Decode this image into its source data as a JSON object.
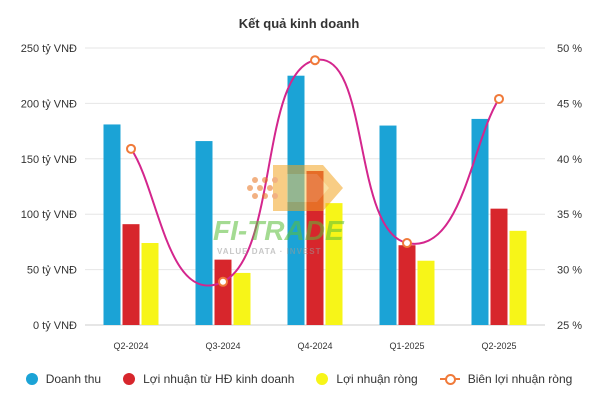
{
  "colors": {
    "revenue": "#1ba3d6",
    "op_profit": "#d7262c",
    "net_profit": "#f7f518",
    "margin_line": "#d4268d",
    "margin_marker": "#f07a3a",
    "grid": "#e6e6e6",
    "axis_text": "#333333"
  },
  "watermark": {
    "brand": "FI-TRADE",
    "tagline": "VALUE DATA · INVEST"
  },
  "chart_data": {
    "type": "bar",
    "title": "Kết quả kinh doanh",
    "categories": [
      "Q2-2024",
      "Q3-2024",
      "Q4-2024",
      "Q1-2025",
      "Q2-2025"
    ],
    "series": [
      {
        "name": "Doanh thu",
        "type": "bar",
        "axis": "left",
        "values": [
          181,
          166,
          225,
          180,
          186
        ]
      },
      {
        "name": "Lợi nhuận từ HĐ kinh doanh",
        "type": "bar",
        "axis": "left",
        "values": [
          91,
          59,
          139,
          72,
          105
        ]
      },
      {
        "name": "Lợi nhuận ròng",
        "type": "bar",
        "axis": "left",
        "values": [
          74,
          47,
          110,
          58,
          85
        ]
      },
      {
        "name": "Biên lợi nhuận ròng",
        "type": "line",
        "axis": "right",
        "values": [
          40.9,
          28.9,
          48.9,
          32.4,
          45.4
        ]
      }
    ],
    "y_left": {
      "ticks": [
        "0 tỷ VNĐ",
        "50 tỷ VNĐ",
        "100 tỷ VNĐ",
        "150 tỷ VNĐ",
        "200 tỷ VNĐ",
        "250 tỷ VNĐ"
      ],
      "ylim": [
        0,
        250
      ]
    },
    "y_right": {
      "ticks": [
        "25 %",
        "30 %",
        "35 %",
        "40 %",
        "45 %",
        "50 %"
      ],
      "ylim": [
        25,
        50
      ]
    },
    "grid": true,
    "legend": "bottom"
  }
}
